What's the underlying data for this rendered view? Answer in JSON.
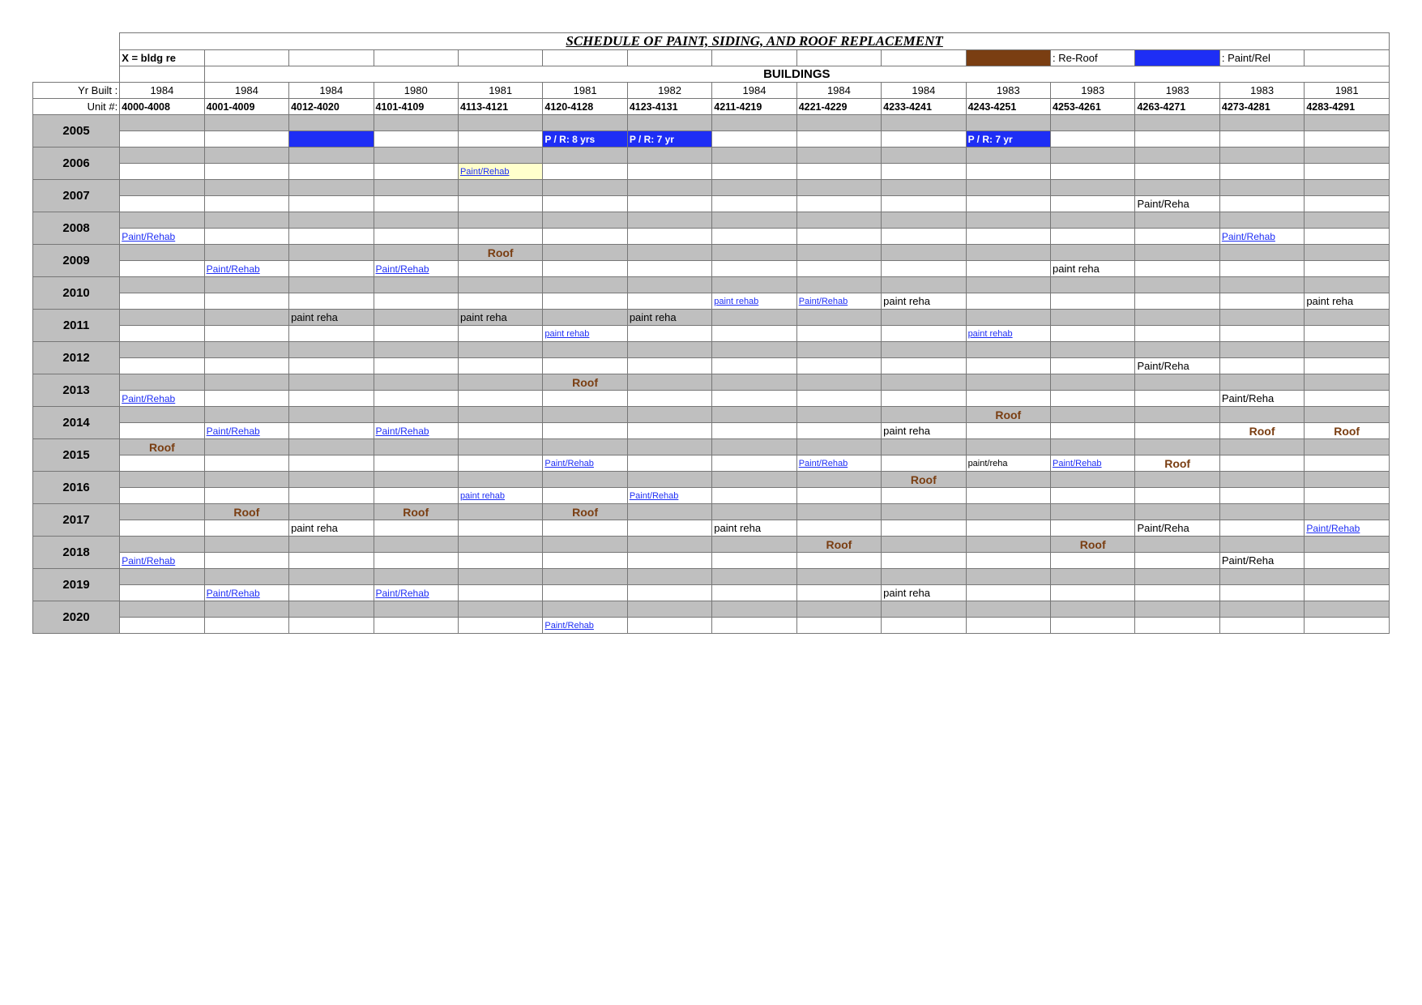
{
  "title": "SCHEDULE OF PAINT, SIDING, AND ROOF REPLACEMENT",
  "legend": {
    "x_label": "X = bldg re",
    "reroof": ": Re-Roof",
    "paintrel": ": Paint/Rel"
  },
  "headers": {
    "buildings": "BUILDINGS",
    "yr_built": "Yr  Built :",
    "unit_no": "Unit #:"
  },
  "columns_years": [
    "1984",
    "1984",
    "1984",
    "1980",
    "1981",
    "1981",
    "1982",
    "1984",
    "1984",
    "1984",
    "1983",
    "1983",
    "1983",
    "1983",
    "1981"
  ],
  "columns_units": [
    "4000-4008",
    "4001-4009",
    "4012-4020",
    "4101-4109",
    "4113-4121",
    "4120-4128",
    "4123-4131",
    "4211-4219",
    "4221-4229",
    "4233-4241",
    "4243-4251",
    "4253-4261",
    "4263-4271",
    "4273-4281",
    "4283-4291"
  ],
  "row_years": [
    "2005",
    "2006",
    "2007",
    "2008",
    "2009",
    "2010",
    "2011",
    "2012",
    "2013",
    "2014",
    "2015",
    "2016",
    "2017",
    "2018",
    "2019",
    "2020"
  ],
  "cells": {
    "2005": {
      "bottom": {
        "2": {
          "bg": "blue",
          "text": ""
        },
        "5": {
          "bg": "blue",
          "text": "P / R: 8 yrs",
          "cls": "blue-bg-white"
        },
        "6": {
          "bg": "blue",
          "text": "P / R: 7 yr",
          "cls": "blue-bg-white"
        },
        "10": {
          "bg": "blue",
          "text": "P / R: 7 yr",
          "cls": "blue-bg-white"
        }
      }
    },
    "2006": {
      "bottom": {
        "4": {
          "bg": "yellow",
          "text": "Paint/Rehab",
          "cls": "pr-blue small"
        }
      }
    },
    "2007": {
      "bottom": {
        "12": {
          "text": "Paint/Reha",
          "cls": "pr-black"
        }
      }
    },
    "2008": {
      "bottom": {
        "0": {
          "text": "Paint/Rehab",
          "cls": "pr-blue"
        },
        "13": {
          "text": "Paint/Rehab",
          "cls": "pr-blue"
        }
      }
    },
    "2009": {
      "top": {
        "4": {
          "text": "Roof",
          "cls": "roof-text"
        }
      },
      "bottom": {
        "1": {
          "text": "Paint/Rehab",
          "cls": "pr-blue"
        },
        "3": {
          "text": "Paint/Rehab",
          "cls": "pr-blue"
        },
        "11": {
          "text": "paint reha",
          "cls": "pr-black"
        }
      }
    },
    "2010": {
      "bottom": {
        "7": {
          "text": "paint rehab",
          "cls": "pr-blue small"
        },
        "8": {
          "text": "Paint/Rehab",
          "cls": "pr-blue small"
        },
        "9": {
          "text": "paint reha",
          "cls": "pr-black"
        },
        "14": {
          "text": "paint reha",
          "cls": "pr-black"
        }
      }
    },
    "2011": {
      "top": {
        "2": {
          "text": "paint reha",
          "cls": "pr-black"
        },
        "4": {
          "text": "paint reha",
          "cls": "pr-black"
        },
        "6": {
          "text": "paint reha",
          "cls": "pr-black"
        }
      },
      "bottom": {
        "5": {
          "text": "paint rehab",
          "cls": "pr-blue small"
        },
        "10": {
          "text": "paint rehab",
          "cls": "pr-blue small"
        }
      }
    },
    "2012": {
      "bottom": {
        "12": {
          "text": "Paint/Reha",
          "cls": "pr-black"
        }
      }
    },
    "2013": {
      "top": {
        "5": {
          "text": "Roof",
          "cls": "roof-text"
        }
      },
      "bottom": {
        "0": {
          "text": "Paint/Rehab",
          "cls": "pr-blue"
        },
        "13": {
          "text": "Paint/Reha",
          "cls": "pr-black"
        }
      }
    },
    "2014": {
      "top": {
        "10": {
          "text": "Roof",
          "cls": "roof-text"
        }
      },
      "bottom": {
        "1": {
          "text": "Paint/Rehab",
          "cls": "pr-blue"
        },
        "3": {
          "text": "Paint/Rehab",
          "cls": "pr-blue"
        },
        "9": {
          "text": "paint reha",
          "cls": "pr-black"
        },
        "13": {
          "text": "Roof",
          "cls": "roof-text"
        },
        "14": {
          "text": "Roof",
          "cls": "roof-text"
        }
      }
    },
    "2015": {
      "top": {
        "0": {
          "text": "Roof",
          "cls": "roof-text"
        }
      },
      "bottom": {
        "5": {
          "text": "Paint/Rehab",
          "cls": "pr-blue small"
        },
        "8": {
          "text": "Paint/Rehab",
          "cls": "pr-blue small"
        },
        "10": {
          "text": "paint/reha",
          "cls": "pr-black small"
        },
        "11": {
          "text": "Paint/Rehab",
          "cls": "pr-blue small"
        },
        "12": {
          "text": "Roof",
          "cls": "roof-text"
        }
      }
    },
    "2016": {
      "top": {
        "9": {
          "text": "Roof",
          "cls": "roof-text"
        }
      },
      "bottom": {
        "4": {
          "text": "paint rehab",
          "cls": "pr-blue small"
        },
        "6": {
          "text": "Paint/Rehab",
          "cls": "pr-blue small"
        }
      }
    },
    "2017": {
      "top": {
        "1": {
          "text": "Roof",
          "cls": "roof-text"
        },
        "3": {
          "text": "Roof",
          "cls": "roof-text"
        },
        "5": {
          "text": "Roof",
          "cls": "roof-text"
        }
      },
      "bottom": {
        "2": {
          "text": "paint reha",
          "cls": "pr-black"
        },
        "7": {
          "text": "paint reha",
          "cls": "pr-black"
        },
        "12": {
          "text": "Paint/Reha",
          "cls": "pr-black"
        },
        "14": {
          "text": "Paint/Rehab",
          "cls": "pr-blue"
        }
      }
    },
    "2018": {
      "top": {
        "8": {
          "text": "Roof",
          "cls": "roof-text"
        },
        "11": {
          "text": "Roof",
          "cls": "roof-text"
        }
      },
      "bottom": {
        "0": {
          "text": "Paint/Rehab",
          "cls": "pr-blue"
        },
        "13": {
          "text": "Paint/Reha",
          "cls": "pr-black"
        }
      }
    },
    "2019": {
      "bottom": {
        "1": {
          "text": "Paint/Rehab",
          "cls": "pr-blue"
        },
        "3": {
          "text": "Paint/Rehab",
          "cls": "pr-blue"
        },
        "9": {
          "text": "paint reha",
          "cls": "pr-black"
        }
      }
    },
    "2020": {
      "bottom": {
        "5": {
          "text": "Paint/Rehab",
          "cls": "pr-blue small"
        }
      }
    }
  },
  "colors": {
    "gray": "#bfbfbf",
    "brown": "#7a3e12",
    "blue": "#1e2ef5",
    "yellow": "#ffffcc",
    "border": "#777777",
    "text": "#000000"
  }
}
